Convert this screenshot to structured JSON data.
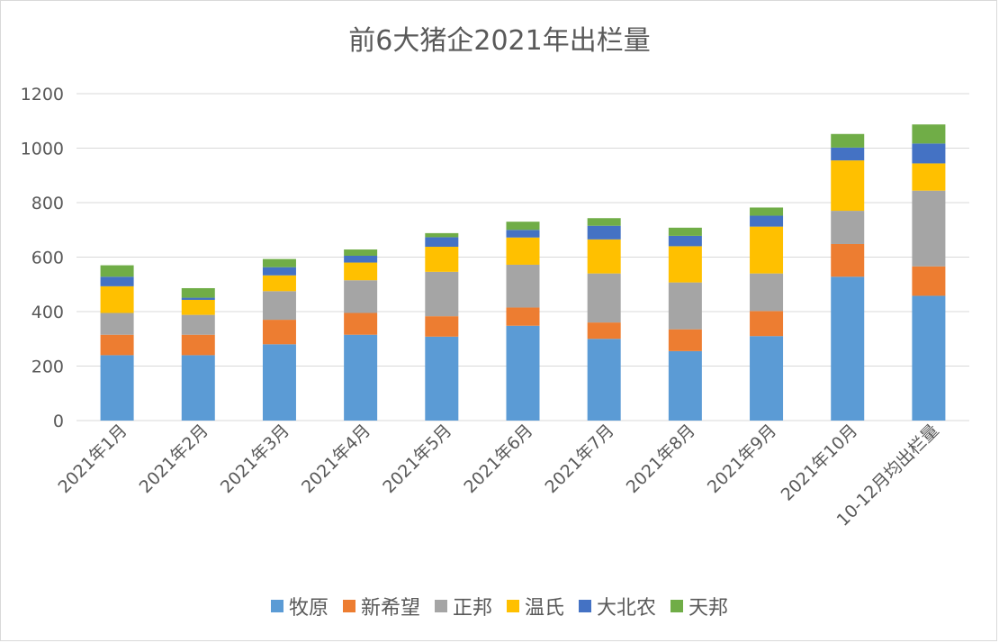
{
  "chart_data": {
    "type": "bar",
    "stacked": true,
    "title": "前6大猪企2021年出栏量",
    "xlabel": "",
    "ylabel": "",
    "ylim": [
      0,
      1200
    ],
    "yticks": [
      0,
      200,
      400,
      600,
      800,
      1000,
      1200
    ],
    "grid": true,
    "legend_position": "bottom",
    "categories": [
      "2021年1月",
      "2021年2月",
      "2021年3月",
      "2021年4月",
      "2021年5月",
      "2021年6月",
      "2021年7月",
      "2021年8月",
      "2021年9月",
      "2021年10月",
      "10-12月均出栏量"
    ],
    "series": [
      {
        "name": "牧原",
        "color": "#5b9bd5",
        "values": [
          240,
          240,
          280,
          315,
          308,
          348,
          300,
          255,
          310,
          528,
          458
        ]
      },
      {
        "name": "新希望",
        "color": "#ed7d31",
        "values": [
          75,
          75,
          90,
          80,
          75,
          67,
          60,
          80,
          92,
          120,
          108
        ]
      },
      {
        "name": "正邦",
        "color": "#a5a5a5",
        "values": [
          80,
          73,
          105,
          120,
          163,
          157,
          180,
          172,
          138,
          122,
          278
        ]
      },
      {
        "name": "温氏",
        "color": "#ffc000",
        "values": [
          98,
          55,
          58,
          65,
          92,
          100,
          125,
          133,
          172,
          185,
          100
        ]
      },
      {
        "name": "大北农",
        "color": "#4472c4",
        "values": [
          35,
          8,
          30,
          25,
          35,
          28,
          50,
          38,
          40,
          47,
          73
        ]
      },
      {
        "name": "天邦",
        "color": "#70ad47",
        "values": [
          42,
          35,
          30,
          23,
          15,
          30,
          28,
          30,
          30,
          50,
          70
        ]
      }
    ]
  }
}
